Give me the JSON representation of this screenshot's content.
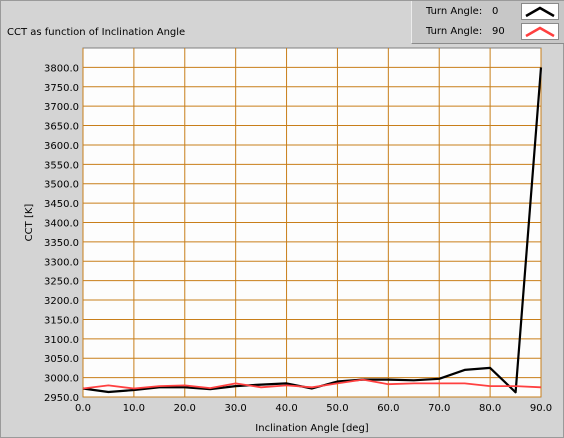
{
  "chart_data": {
    "type": "line",
    "title": "CCT as function of Inclination Angle",
    "xlabel": "Inclination Angle [deg]",
    "ylabel": "CCT [K]",
    "xlim": [
      0,
      90
    ],
    "ylim": [
      2950,
      3850
    ],
    "x_ticks": [
      0,
      10,
      20,
      30,
      40,
      50,
      60,
      70,
      80,
      90
    ],
    "x_tick_labels": [
      "0.0",
      "10.0",
      "20.0",
      "30.0",
      "40.0",
      "50.0",
      "60.0",
      "70.0",
      "80.0",
      "90.0"
    ],
    "y_ticks": [
      2950,
      3000,
      3050,
      3100,
      3150,
      3200,
      3250,
      3300,
      3350,
      3400,
      3450,
      3500,
      3550,
      3600,
      3650,
      3700,
      3750,
      3800
    ],
    "y_tick_labels": [
      "2950.0",
      "3000.0",
      "3050.0",
      "3100.0",
      "3150.0",
      "3200.0",
      "3250.0",
      "3300.0",
      "3350.0",
      "3400.0",
      "3450.0",
      "3500.0",
      "3550.0",
      "3600.0",
      "3650.0",
      "3700.0",
      "3750.0",
      "3800.0"
    ],
    "grid": true,
    "legend_position": "top-right",
    "series": [
      {
        "name": "Turn Angle:",
        "legend_value": "0",
        "color": "#000000",
        "x": [
          0,
          5,
          10,
          15,
          20,
          25,
          30,
          35,
          40,
          45,
          50,
          55,
          60,
          65,
          70,
          75,
          80,
          85,
          90
        ],
        "y": [
          2972,
          2963,
          2968,
          2975,
          2975,
          2970,
          2978,
          2982,
          2985,
          2972,
          2990,
          2995,
          2995,
          2993,
          2997,
          3020,
          3025,
          2962,
          3800
        ]
      },
      {
        "name": "Turn Angle:",
        "legend_value": "90",
        "color": "#ff4040",
        "x": [
          0,
          5,
          10,
          15,
          20,
          25,
          30,
          35,
          40,
          45,
          50,
          55,
          60,
          65,
          70,
          75,
          80,
          85,
          90
        ],
        "y": [
          2972,
          2980,
          2972,
          2978,
          2980,
          2973,
          2985,
          2975,
          2980,
          2975,
          2985,
          2995,
          2983,
          2985,
          2985,
          2985,
          2978,
          2978,
          2975
        ]
      }
    ]
  },
  "colors": {
    "plot_background": "#fdfdfd",
    "grid": "#c87e1a",
    "panel": "#d4d4d4"
  },
  "icons": {
    "legend_swatch": "line-sample-icon"
  }
}
